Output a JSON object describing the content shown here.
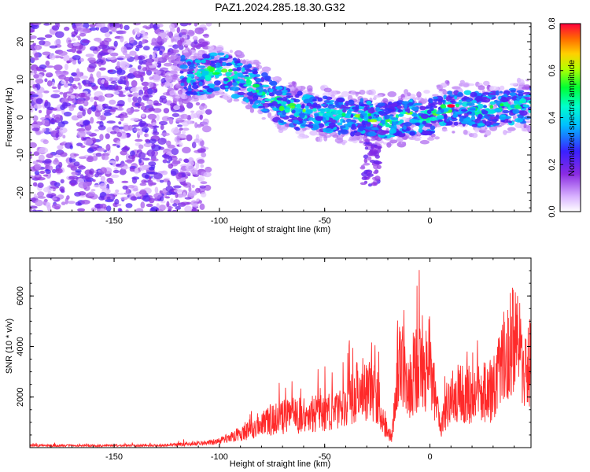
{
  "title": "PAZ1.2024.285.18.30.G32",
  "chart_data": [
    {
      "type": "heatmap",
      "xlabel": "Height of straight line (km)",
      "ylabel": "Frequency (Hz)",
      "xlim": [
        -190,
        48
      ],
      "ylim": [
        -25,
        25
      ],
      "xticks": [
        -150,
        -100,
        -50,
        0
      ],
      "yticks": [
        -20,
        -10,
        0,
        10,
        20
      ],
      "colorbar": {
        "label": "Normalized spectral amplitude",
        "range": [
          0.0,
          0.8
        ],
        "ticks": [
          "0.0",
          "0.2",
          "0.4",
          "0.6",
          "0.8"
        ],
        "colormap": "rainbow (white-violet-blue-cyan-green-yellow-red)"
      },
      "ridge": {
        "description": "Dominant frequency trace",
        "x": [
          -115,
          -110,
          -100,
          -90,
          -80,
          -70,
          -60,
          -50,
          -40,
          -30,
          -20,
          -10,
          0,
          10,
          20,
          30,
          40,
          48
        ],
        "y": [
          11,
          11,
          12,
          10,
          7,
          3,
          1,
          1,
          0,
          0,
          -1,
          0,
          0,
          3,
          2,
          2,
          3,
          3
        ]
      },
      "grid": false
    },
    {
      "type": "line",
      "xlabel": "Height of straight line (km)",
      "ylabel": "SNR (10 * v/v)",
      "xlim": [
        -190,
        48
      ],
      "ylim": [
        0,
        7500
      ],
      "xticks": [
        -150,
        -100,
        -50,
        0
      ],
      "yticks": [
        2000,
        4000,
        6000
      ],
      "series": [
        {
          "color": "#ff2a2a",
          "x": [
            -190,
            -170,
            -150,
            -130,
            -120,
            -110,
            -100,
            -90,
            -80,
            -70,
            -60,
            -50,
            -40,
            -35,
            -30,
            -25,
            -20,
            -18,
            -15,
            -12,
            -10,
            -5,
            0,
            5,
            10,
            20,
            30,
            35,
            40,
            45,
            48
          ],
          "y": [
            100,
            100,
            100,
            100,
            150,
            200,
            300,
            700,
            1200,
            1500,
            1600,
            1700,
            1900,
            2800,
            3000,
            2500,
            700,
            600,
            3800,
            4500,
            3200,
            3800,
            4200,
            900,
            2700,
            2600,
            2800,
            4300,
            5600,
            4000,
            4200
          ]
        }
      ],
      "grid": false
    }
  ]
}
